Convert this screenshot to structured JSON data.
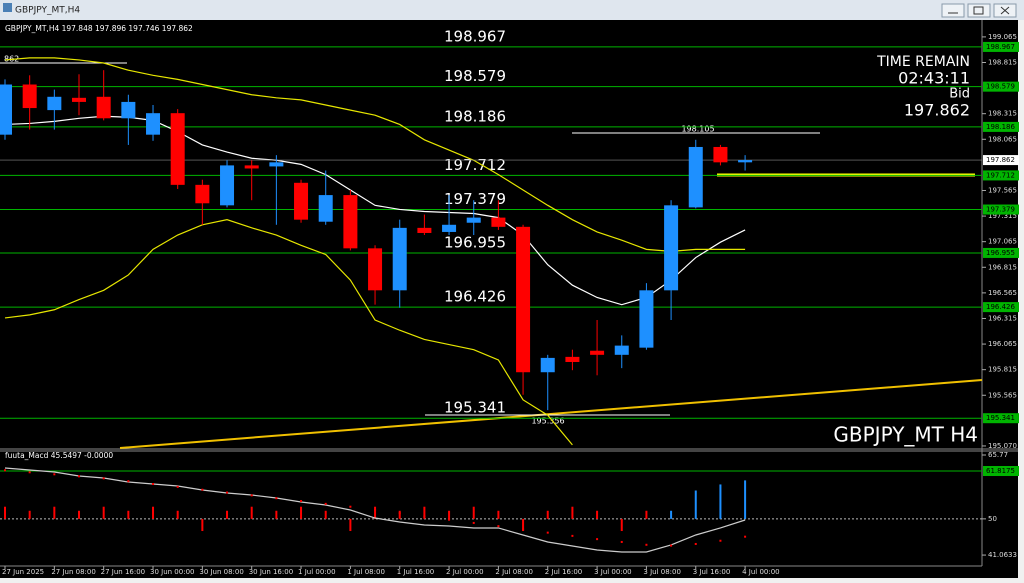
{
  "window_title": "GBPJPY_MT,H4",
  "chart_data": [
    {
      "type": "candlestick",
      "title": "GBPJPY_MT,H4 197.848 197.896 197.746 197.862",
      "watermark": "GBPJPY_MT H4",
      "info": [
        "TIME REMAIN",
        "02:43:11",
        "Bid",
        "197.862"
      ],
      "categories": [
        "27 Jun 2025",
        null,
        "27 Jun 08:00",
        null,
        "27 Jun 16:00",
        null,
        "30 Jun 00:00",
        null,
        "30 Jun 08:00",
        null,
        "30 Jun 16:00",
        null,
        "1 Jul 00:00",
        null,
        "1 Jul 08:00",
        null,
        "1 Jul 16:00",
        null,
        "2 Jul 00:00",
        null,
        "2 Jul 08:00",
        null,
        "2 Jul 16:00",
        null,
        "3 Jul 00:00",
        null,
        "3 Jul 08:00",
        null,
        "3 Jul 16:00",
        null,
        "4 Jul 00:00"
      ],
      "open": [
        198.11,
        198.6,
        198.35,
        198.47,
        198.48,
        198.27,
        198.11,
        198.32,
        197.62,
        197.42,
        197.81,
        197.8,
        197.64,
        197.26,
        197.52,
        197.0,
        196.59,
        197.2,
        197.16,
        197.25,
        197.3,
        197.21,
        195.79,
        195.94,
        196.0,
        195.96,
        196.03,
        196.59,
        197.4,
        197.99,
        197.84
      ],
      "high": [
        198.65,
        198.69,
        198.55,
        198.7,
        198.74,
        198.5,
        198.4,
        198.36,
        197.67,
        197.86,
        197.86,
        197.91,
        197.67,
        197.76,
        197.57,
        197.03,
        197.28,
        197.33,
        197.52,
        197.47,
        197.47,
        197.23,
        195.96,
        196.01,
        196.3,
        196.15,
        196.66,
        197.47,
        198.06,
        198.01,
        197.91
      ],
      "low": [
        198.06,
        198.16,
        198.16,
        198.3,
        198.25,
        198.01,
        198.05,
        197.58,
        197.23,
        197.4,
        197.47,
        197.23,
        197.25,
        197.23,
        196.98,
        196.45,
        196.42,
        197.13,
        197.13,
        197.13,
        197.18,
        195.57,
        195.42,
        195.81,
        195.76,
        195.83,
        196.01,
        196.3,
        197.39,
        197.81,
        197.76
      ],
      "close": [
        198.6,
        198.37,
        198.48,
        198.43,
        198.27,
        198.43,
        198.32,
        197.62,
        197.44,
        197.81,
        197.78,
        197.84,
        197.28,
        197.52,
        197.0,
        196.59,
        197.2,
        197.15,
        197.23,
        197.3,
        197.21,
        195.79,
        195.93,
        195.89,
        195.96,
        196.05,
        196.59,
        197.42,
        197.99,
        197.84,
        197.862
      ],
      "up_color": "#1e90ff",
      "down_color": "#ff0000",
      "overlays": [
        {
          "color": "#ffffff",
          "values": [
            198.21,
            198.22,
            198.24,
            198.27,
            198.29,
            198.28,
            198.25,
            198.14,
            198.01,
            197.94,
            197.88,
            197.86,
            197.82,
            197.72,
            197.57,
            197.42,
            197.38,
            197.36,
            197.35,
            197.34,
            197.3,
            197.13,
            196.84,
            196.64,
            196.52,
            196.45,
            196.52,
            196.69,
            196.91,
            197.06,
            197.18
          ]
        },
        {
          "color": "#e6e600",
          "values": [
            198.84,
            198.86,
            198.86,
            198.84,
            198.81,
            198.74,
            198.69,
            198.65,
            198.6,
            198.55,
            198.5,
            198.47,
            198.45,
            198.4,
            198.35,
            198.3,
            198.21,
            198.06,
            197.96,
            197.86,
            197.72,
            197.57,
            197.42,
            197.28,
            197.16,
            197.08,
            196.99,
            196.97,
            196.99,
            196.99,
            196.99
          ]
        },
        {
          "color": "#e6e600",
          "values": [
            196.32,
            196.35,
            196.4,
            196.5,
            196.59,
            196.74,
            196.99,
            197.13,
            197.23,
            197.28,
            197.2,
            197.13,
            197.03,
            196.94,
            196.69,
            196.3,
            196.2,
            196.11,
            196.06,
            196.01,
            195.91,
            195.52,
            195.37,
            195.08,
            null,
            null,
            null,
            null,
            null,
            null,
            null
          ]
        }
      ],
      "levels": [
        198.967,
        198.579,
        198.186,
        197.712,
        197.379,
        196.955,
        196.426,
        195.341
      ],
      "level_color": "#00b400",
      "bid": 197.862,
      "annotations": [
        "862",
        "198.105",
        "195.356"
      ],
      "ylim": [
        195.05,
        199.23
      ],
      "yticks": [
        199.065,
        198.815,
        198.315,
        198.065,
        197.565,
        197.315,
        197.065,
        196.815,
        196.565,
        196.315,
        196.065,
        195.815,
        195.565,
        {
          "value": 195.07,
          "label": "195.070"
        }
      ]
    },
    {
      "type": "macd",
      "title": "fuuta_Macd 45.5497 -0.0000",
      "base": 50,
      "values": [
        53,
        52,
        53,
        52,
        53,
        52,
        53,
        52,
        47,
        52,
        53,
        52,
        53,
        52,
        47,
        53,
        52,
        53,
        52,
        53,
        52,
        47,
        52,
        53,
        52,
        47,
        52,
        52,
        57,
        58.5,
        59.5
      ],
      "colors": [
        "#ff0000",
        "#ff0000",
        "#ff0000",
        "#ff0000",
        "#ff0000",
        "#ff0000",
        "#ff0000",
        "#ff0000",
        "#ff0000",
        "#ff0000",
        "#ff0000",
        "#ff0000",
        "#ff0000",
        "#ff0000",
        "#ff0000",
        "#ff0000",
        "#ff0000",
        "#ff0000",
        "#ff0000",
        "#ff0000",
        "#ff0000",
        "#ff0000",
        "#ff0000",
        "#ff0000",
        "#ff0000",
        "#ff0000",
        "#ff0000",
        "#1e90ff",
        "#1e90ff",
        "#1e90ff",
        "#1e90ff"
      ],
      "lines": [
        {
          "color": "#cccccc",
          "values": [
            62.56,
            62.07,
            61.57,
            60.58,
            60.09,
            59.1,
            58.61,
            58.12,
            57.13,
            56.39,
            55.89,
            55.15,
            54.17,
            53.42,
            52.19,
            50.21,
            49.23,
            48.49,
            48.24,
            47.75,
            47.75,
            46.02,
            44.29,
            43.3,
            42.31,
            41.82,
            41.82,
            43.55,
            46.02,
            47.75,
            49.72
          ]
        },
        {
          "color": "#ff0000",
          "style": "dots",
          "values": [
            62.0,
            61.5,
            61.0,
            60.5,
            60.0,
            59.3,
            58.6,
            57.9,
            57.2,
            56.5,
            55.8,
            55.1,
            54.4,
            53.7,
            53.0,
            52.2,
            51.4,
            50.6,
            49.8,
            49.0,
            48.2,
            47.4,
            46.6,
            45.8,
            45.0,
            44.3,
            43.6,
            43.4,
            43.8,
            44.6,
            45.6
          ]
        }
      ],
      "level": 61.8175,
      "ylim": [
        38.61,
        66.51
      ],
      "yticks": [
        65.77,
        50,
        41.0633
      ]
    }
  ]
}
